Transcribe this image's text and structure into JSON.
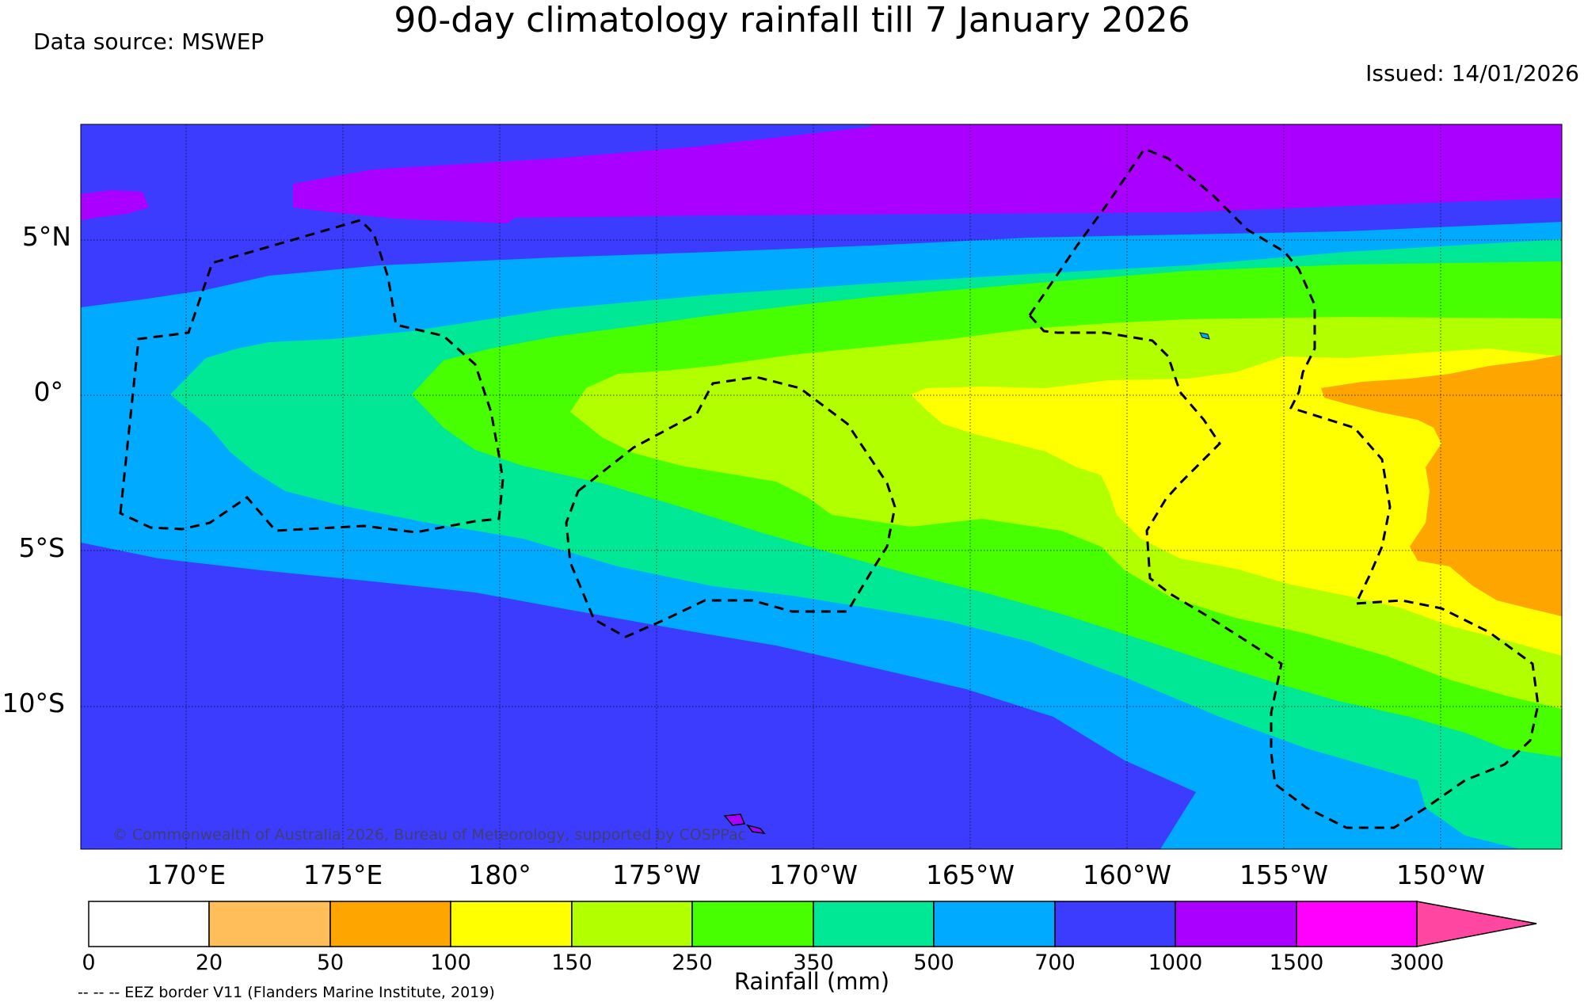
{
  "title": "90-day climatology rainfall till 7 January 2026",
  "data_source": "Data source: MSWEP",
  "issued": "Issued: 14/01/2026",
  "copyright": "© Commonwealth of Australia 2026, Bureau of Meteorology, supported by COSPPac",
  "eez_note": "-- -- -- EEZ border V11 (Flanders Marine Institute, 2019)",
  "map": {
    "lat_labels": [
      "5°N",
      "0°",
      "5°S",
      "10°S"
    ],
    "lon_labels": [
      "170°E",
      "175°E",
      "180°",
      "175°W",
      "170°W",
      "165°W",
      "160°W",
      "155°W",
      "150°W"
    ],
    "bands": [
      {
        "range": "0-20",
        "color": "#ffffff"
      },
      {
        "range": "20-50",
        "color": "#ffbe5a"
      },
      {
        "range": "50-100",
        "color": "#ffa500"
      },
      {
        "range": "100-150",
        "color": "#ffff00"
      },
      {
        "range": "150-250",
        "color": "#b2ff00"
      },
      {
        "range": "250-350",
        "color": "#48ff00"
      },
      {
        "range": "350-500",
        "color": "#00e895"
      },
      {
        "range": "500-700",
        "color": "#00aaff"
      },
      {
        "range": "700-1000",
        "color": "#3c3cff"
      },
      {
        "range": "1000-1500",
        "color": "#aa00ff"
      },
      {
        "range": "1500-3000",
        "color": "#ff00ff"
      },
      {
        "range": ">3000",
        "color": "#ff46a0"
      }
    ]
  },
  "colorbar": {
    "label": "Rainfall (mm)",
    "ticks": [
      "0",
      "20",
      "50",
      "100",
      "150",
      "250",
      "350",
      "500",
      "700",
      "1000",
      "1500",
      "3000"
    ]
  }
}
